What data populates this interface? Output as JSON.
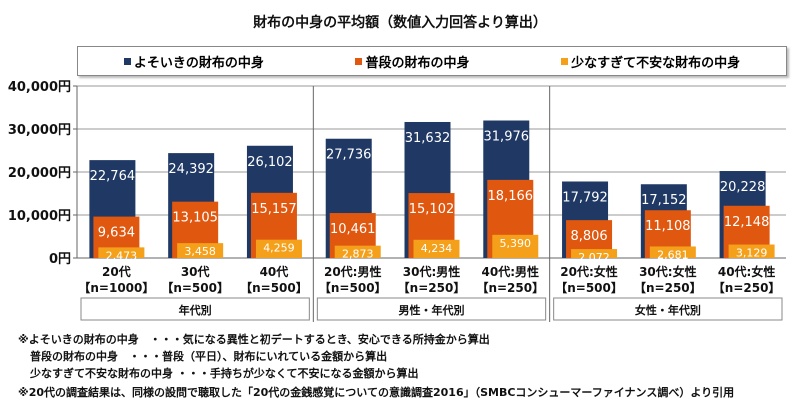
{
  "chart_data": {
    "type": "bar",
    "title": "財布の中身の平均額（数値入力回答より算出）",
    "categories": [
      "20代",
      "30代",
      "40代",
      "20代:男性",
      "30代:男性",
      "40代:男性",
      "20代:女性",
      "30代:女性",
      "40代:女性"
    ],
    "sample_sizes": [
      "【n=1000】",
      "【n=500】",
      "【n=500】",
      "【n=500】",
      "【n=250】",
      "【n=250】",
      "【n=500】",
      "【n=250】",
      "【n=250】"
    ],
    "groups": [
      {
        "label": "年代別",
        "categories": [
          0,
          1,
          2
        ]
      },
      {
        "label": "男性・年代別",
        "categories": [
          3,
          4,
          5
        ]
      },
      {
        "label": "女性・年代別",
        "categories": [
          6,
          7,
          8
        ]
      }
    ],
    "series": [
      {
        "name": "よそいきの財布の中身",
        "color": "#1f3864",
        "values": [
          22764,
          24392,
          26102,
          27736,
          31632,
          31976,
          17792,
          17152,
          20228
        ]
      },
      {
        "name": "普段の財布の中身",
        "color": "#e0570f",
        "values": [
          9634,
          13105,
          15157,
          10461,
          15102,
          18166,
          8806,
          11108,
          12148
        ]
      },
      {
        "name": "少なすぎて不安な財布の中身",
        "color": "#f5a01a",
        "values": [
          2473,
          3458,
          4259,
          2873,
          4234,
          5390,
          2072,
          2681,
          3129
        ]
      }
    ],
    "ylim": [
      0,
      40000
    ],
    "yticks": [
      "0円",
      "10,000円",
      "20,000円",
      "30,000円",
      "40,000円"
    ],
    "grid": true,
    "legend": "top",
    "xlabel": "",
    "ylabel": ""
  },
  "notes": [
    "※よそいきの財布の中身　・・・気になる異性と初デートするとき、安心できる所持金から算出",
    "普段の財布の中身　・・・普段（平日）、財布にいれている金額から算出",
    "少なすぎて不安な財布の中身 ・・・手持ちが少なくて不安になる金額から算出",
    "※20代の調査結果は、同様の設問で聴取した「20代の金銭感覚についての意識調査2016」（SMBCコンシューマーファイナンス調べ）より引用"
  ]
}
